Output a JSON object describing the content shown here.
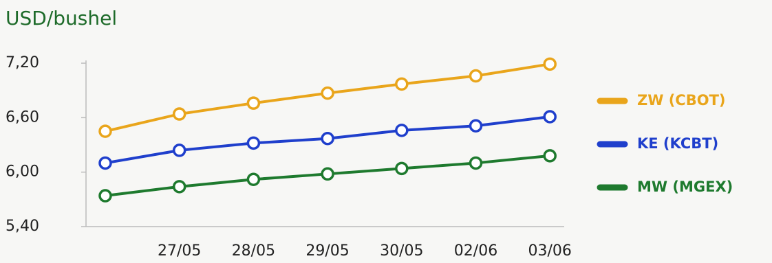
{
  "chart_data": {
    "type": "line",
    "title": "USD/bushel",
    "categories": [
      null,
      "27/05",
      "28/05",
      "29/05",
      "30/05",
      "02/06",
      "03/06"
    ],
    "series": [
      {
        "name": "ZW (CBOT)",
        "color": "#e9a51b",
        "values": [
          6.45,
          6.64,
          6.76,
          6.87,
          6.97,
          7.06,
          7.19
        ]
      },
      {
        "name": "KE (KCBT)",
        "color": "#1f3fcc",
        "values": [
          6.1,
          6.24,
          6.32,
          6.37,
          6.46,
          6.51,
          6.61
        ]
      },
      {
        "name": "MW (MGEX)",
        "color": "#1e7a2e",
        "values": [
          5.74,
          5.84,
          5.92,
          5.98,
          6.04,
          6.1,
          6.18
        ]
      }
    ],
    "ylim": [
      5.4,
      7.2
    ],
    "yticks": [
      {
        "value": 5.4,
        "label": "5,40"
      },
      {
        "value": 6.0,
        "label": "6,00"
      },
      {
        "value": 6.6,
        "label": "6,60"
      },
      {
        "value": 7.2,
        "label": "7,20"
      }
    ],
    "legend": "right"
  }
}
